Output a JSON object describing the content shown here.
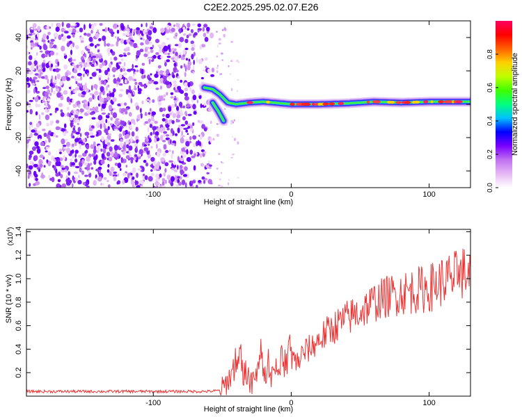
{
  "title": "C2E2.2025.295.02.07.E26",
  "chart_data": [
    {
      "type": "heatmap",
      "xlabel": "Height of straight line (km)",
      "ylabel": "Frequency (Hz)",
      "xlim": [
        -192,
        130
      ],
      "ylim": [
        -50,
        50
      ],
      "xticks": [
        -100,
        0,
        100
      ],
      "xtick_labels": [
        "-100",
        "0",
        "100"
      ],
      "yticks": [
        -40,
        -20,
        0,
        20,
        40
      ],
      "ytick_labels": [
        "-40",
        "-20",
        "0",
        "20",
        "40"
      ],
      "noise_region": {
        "x_range": [
          -192,
          -56
        ],
        "y_range": [
          -50,
          48
        ]
      },
      "ridge": [
        {
          "x": -63,
          "y": 10
        },
        {
          "x": -57,
          "y": 9
        },
        {
          "x": -52,
          "y": 6
        },
        {
          "x": -46,
          "y": 1
        },
        {
          "x": -40,
          "y": 0
        },
        {
          "x": -30,
          "y": 1
        },
        {
          "x": -20,
          "y": 1.5
        },
        {
          "x": 0,
          "y": 0
        },
        {
          "x": 20,
          "y": 0
        },
        {
          "x": 40,
          "y": 0.5
        },
        {
          "x": 60,
          "y": 1.5
        },
        {
          "x": 80,
          "y": 1
        },
        {
          "x": 100,
          "y": 1.5
        },
        {
          "x": 130,
          "y": 1.5
        }
      ],
      "lower_branch": [
        {
          "x": -57,
          "y": 1
        },
        {
          "x": -53,
          "y": -4
        },
        {
          "x": -49,
          "y": -10
        }
      ],
      "colorbar": {
        "label": "Normalized spectral amplitude",
        "range": [
          0.0,
          1.0
        ],
        "ticks": [
          0.0,
          0.2,
          0.4,
          0.6,
          0.8
        ],
        "tick_labels": [
          "0.0",
          "0.2",
          "0.4",
          "0.6",
          "0.8"
        ],
        "colors": [
          "#ffffff",
          "#e6b8f5",
          "#c070f0",
          "#7a00ff",
          "#0000ff",
          "#00c0ff",
          "#00ff80",
          "#40ff00",
          "#c0ff00",
          "#ffd000",
          "#ff6000",
          "#ff0000",
          "#ff0060"
        ]
      }
    },
    {
      "type": "line",
      "xlabel": "Height of straight line (km)",
      "ylabel": "SNR (10 * v/v)",
      "y_multiplier": "(x10",
      "y_multiplier_exp": "4",
      "y_multiplier_close": ")",
      "xlim": [
        -192,
        130
      ],
      "ylim": [
        0,
        1.42
      ],
      "xticks": [
        -100,
        0,
        100
      ],
      "xtick_labels": [
        "-100",
        "0",
        "100"
      ],
      "yticks": [
        0.2,
        0.4,
        0.6,
        0.8,
        1.0,
        1.2,
        1.4
      ],
      "ytick_labels": [
        "0.2",
        "0.4",
        "0.6",
        "0.8",
        "1.0",
        "1.2",
        "1.4"
      ],
      "line_color": "#ee3333",
      "series": [
        {
          "name": "SNR",
          "x": [
            -192,
            -150,
            -100,
            -60,
            -50,
            -45,
            -40,
            -37,
            -35,
            -30,
            -25,
            -20,
            -15,
            -10,
            -5,
            0,
            5,
            10,
            15,
            20,
            30,
            40,
            50,
            60,
            70,
            80,
            90,
            100,
            110,
            120,
            125,
            130
          ],
          "y": [
            0.04,
            0.04,
            0.04,
            0.04,
            0.05,
            0.15,
            0.28,
            0.35,
            0.18,
            0.1,
            0.22,
            0.25,
            0.15,
            0.3,
            0.28,
            0.32,
            0.3,
            0.38,
            0.42,
            0.48,
            0.58,
            0.66,
            0.72,
            0.8,
            0.85,
            0.88,
            0.9,
            0.92,
            0.98,
            1.02,
            1.05,
            1.03
          ]
        }
      ]
    }
  ]
}
